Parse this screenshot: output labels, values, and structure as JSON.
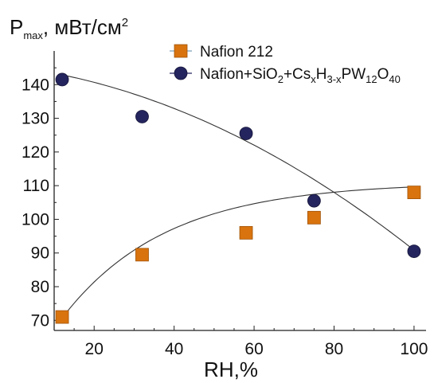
{
  "chart_data": {
    "type": "scatter",
    "ylabel": {
      "main": "P",
      "sub": "max",
      "rest": ", мВт/см",
      "sup": "2"
    },
    "xlabel": "RH,%",
    "xlim": [
      10,
      103
    ],
    "ylim": [
      67,
      150
    ],
    "xticks": [
      20,
      40,
      60,
      80,
      100
    ],
    "yticks": [
      70,
      80,
      90,
      100,
      110,
      120,
      130,
      140
    ],
    "grid": false,
    "legend_position": "top-right",
    "series": [
      {
        "name": "Nafion 212",
        "marker": "square",
        "color": "#d9730d",
        "line_color": "#7ca0b8",
        "x": [
          12,
          32,
          58,
          75,
          100
        ],
        "y": [
          71,
          89.5,
          96,
          100.5,
          108
        ]
      },
      {
        "name": "Nafion+SiO2+CsxH3-xPW12O40",
        "marker": "circle",
        "color": "#24245e",
        "line_color": "#24245e",
        "x": [
          12,
          32,
          58,
          75,
          100
        ],
        "y": [
          141.5,
          130.5,
          125.5,
          105.5,
          90.5
        ]
      }
    ],
    "legend": {
      "series1_label": "Nafion 212",
      "series2_parts": [
        {
          "t": "Nafion+SiO",
          "s": ""
        },
        {
          "t": "2",
          "s": "sub"
        },
        {
          "t": "+Cs",
          "s": ""
        },
        {
          "t": "x",
          "s": "sub"
        },
        {
          "t": "H",
          "s": ""
        },
        {
          "t": "3-x",
          "s": "sub"
        },
        {
          "t": "PW",
          "s": ""
        },
        {
          "t": "12",
          "s": "sub"
        },
        {
          "t": "O",
          "s": ""
        },
        {
          "t": "40",
          "s": "sub"
        }
      ]
    }
  }
}
